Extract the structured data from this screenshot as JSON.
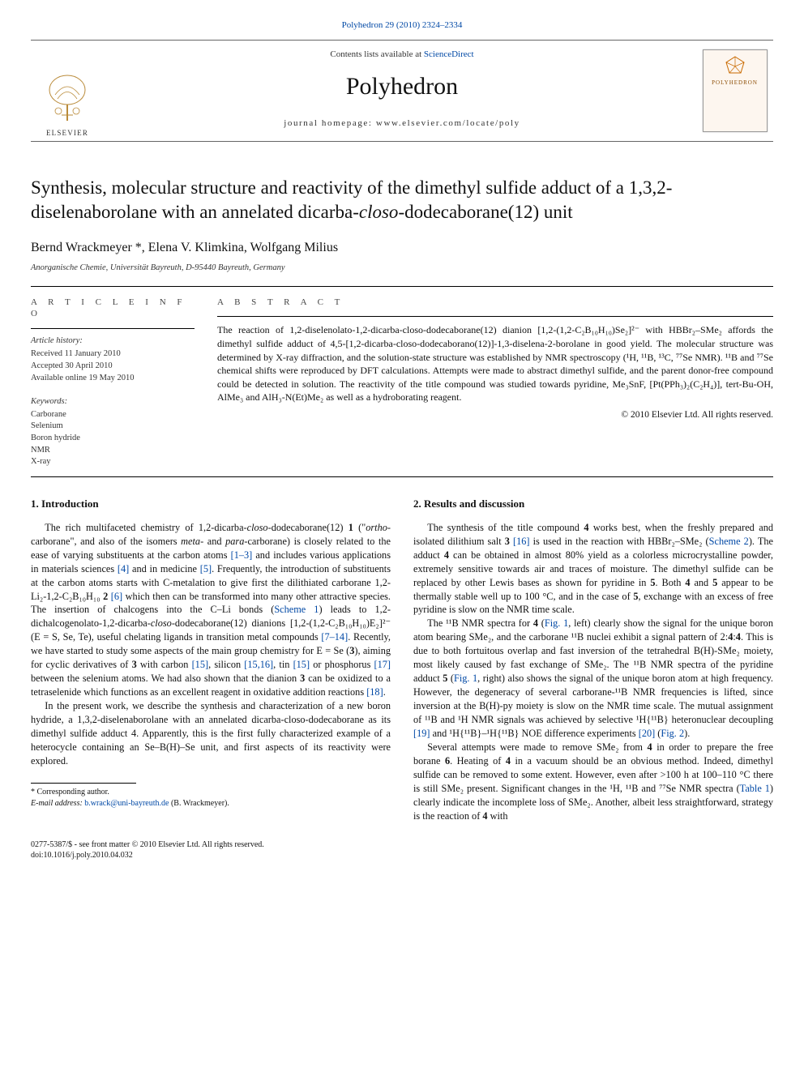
{
  "citation_line": "Polyhedron 29 (2010) 2324–2334",
  "masthead": {
    "contents_prefix": "Contents lists available at ",
    "contents_link": "ScienceDirect",
    "journal": "Polyhedron",
    "homepage_prefix": "journal homepage: ",
    "homepage": "www.elsevier.com/locate/poly",
    "elsevier_word": "ELSEVIER",
    "cover_title": "POLYHEDRON"
  },
  "title_parts": {
    "a": "Synthesis, molecular structure and reactivity of the dimethyl sulfide adduct of a 1,3,2-diselenaborolane with an annelated dicarba-",
    "b": "closo",
    "c": "-dodecaborane(12) unit"
  },
  "authors": "Bernd Wrackmeyer *, Elena V. Klimkina, Wolfgang Milius",
  "affiliation": "Anorganische Chemie, Universität Bayreuth, D-95440 Bayreuth, Germany",
  "sec_labels": {
    "article_info": "A R T I C L E   I N F O",
    "abstract": "A B S T R A C T",
    "history": "Article history:",
    "keywords": "Keywords:"
  },
  "history": {
    "received": "Received 11 January 2010",
    "accepted": "Accepted 30 April 2010",
    "online": "Available online 19 May 2010"
  },
  "keywords": [
    "Carborane",
    "Selenium",
    "Boron hydride",
    "NMR",
    "X-ray"
  ],
  "abstract": "The reaction of 1,2-diselenolato-1,2-dicarba-closo-dodecaborane(12) dianion [1,2-(1,2-C₂B₁₀H₁₀)Se₂]²⁻ with HBBr₂–SMe₂ affords the dimethyl sulfide adduct of 4,5-[1,2-dicarba-closo-dodecaborano(12)]-1,3-diselena-2-borolane in good yield. The molecular structure was determined by X-ray diffraction, and the solution-state structure was established by NMR spectroscopy (¹H, ¹¹B, ¹³C, ⁷⁷Se NMR). ¹¹B and ⁷⁷Se chemical shifts were reproduced by DFT calculations. Attempts were made to abstract dimethyl sulfide, and the parent donor-free compound could be detected in solution. The reactivity of the title compound was studied towards pyridine, Me₃SnF, [Pt(PPh₃)₂(C₂H₄)], tert-Bu-OH, AlMe₃ and AlH₃-N(Et)Me₂ as well as a hydroborating reagent.",
  "copyright": "© 2010 Elsevier Ltd. All rights reserved.",
  "sections": {
    "intro": "1. Introduction",
    "results": "2. Results and discussion"
  },
  "body": {
    "intro_p1_a": "The rich multifaceted chemistry of 1,2-dicarba-",
    "intro_p1_b": "closo",
    "intro_p1_c": "-dodecaborane(12) ",
    "bold1": "1",
    "intro_p1_d": " (\"",
    "ortho": "ortho",
    "intro_p1_e": "-carborane\", and also of the isomers ",
    "meta": "meta",
    "intro_p1_f": "- and ",
    "para_w": "para",
    "intro_p1_g": "-carborane) is closely related to the ease of varying substituents at the carbon atoms ",
    "ref1": "[1–3]",
    "intro_p1_h": " and includes various applications in materials sciences ",
    "ref4": "[4]",
    "intro_p1_i": " and in medicine ",
    "ref5": "[5]",
    "intro_p1_j": ". Frequently, the introduction of substituents at the carbon atoms starts with C-metalation to give first the dilithiated carborane 1,2-Li₂-1,2-C₂B₁₀H₁₀ ",
    "bold2": "2",
    "intro_p1_k": " ",
    "ref6": "[6]",
    "intro_p1_l": " which then can be transformed into many other attractive species. The insertion of chalcogens into the C–Li bonds (",
    "scheme1": "Scheme 1",
    "intro_p1_m": ") leads to 1,2-dichalcogenolato-1,2-dicarba-",
    "closo2": "closo",
    "intro_p1_n": "-dodecaborane(12) dianions [1,2-(1,2-C₂B₁₀H₁₀)E₂]²⁻ (E = S, Se, Te), useful chelating ligands in transition metal compounds ",
    "ref7": "[7–14]",
    "intro_p1_o": ". Recently, we have started to study some aspects of the main group chemistry for E = Se (",
    "bold3": "3",
    "intro_p1_p": "), aiming for cyclic derivatives of ",
    "bold3b": "3",
    "intro_p1_q": " with carbon ",
    "ref15a": "[15]",
    "intro_p1_r": ", silicon ",
    "ref1516": "[15,16]",
    "intro_p1_s": ", tin ",
    "ref15b": "[15]",
    "intro_p1_t": " or phosphorus ",
    "ref17": "[17]",
    "intro_p1_u": " between the selenium atoms. We had also shown that the dianion ",
    "bold3c": "3",
    "intro_p1_v": " can be oxidized to a tetraselenide which functions as an excellent reagent in oxidative addition reactions ",
    "ref18": "[18]",
    "intro_p1_w": ".",
    "intro_p2": "In the present work, we describe the synthesis and characterization of a new boron hydride, a 1,3,2-diselenaborolane with an annelated dicarba-closo-dodecaborane as its dimethyl sulfide adduct 4. Apparently, this is the first fully characterized example of a heterocycle containing an Se–B(H)–Se unit, and first aspects of its reactivity were explored.",
    "res_p1": "The synthesis of the title compound 4 works best, when the freshly prepared and isolated dilithium salt 3 [16] is used in the reaction with HBBr₂–SMe₂ (Scheme 2). The adduct 4 can be obtained in almost 80% yield as a colorless microcrystalline powder, extremely sensitive towards air and traces of moisture. The dimethyl sulfide can be replaced by other Lewis bases as shown for pyridine in 5. Both 4 and 5 appear to be thermally stable well up to 100 °C, and in the case of 5, exchange with an excess of free pyridine is slow on the NMR time scale.",
    "res_p2": "The ¹¹B NMR spectra for 4 (Fig. 1, left) clearly show the signal for the unique boron atom bearing SMe₂, and the carborane ¹¹B nuclei exhibit a signal pattern of 2:4:4. This is due to both fortuitous overlap and fast inversion of the tetrahedral B(H)-SMe₂ moiety, most likely caused by fast exchange of SMe₂. The ¹¹B NMR spectra of the pyridine adduct 5 (Fig. 1, right) also shows the signal of the unique boron atom at high frequency. However, the degeneracy of several carborane-¹¹B NMR frequencies is lifted, since inversion at the B(H)-py moiety is slow on the NMR time scale. The mutual assignment of ¹¹B and ¹H NMR signals was achieved by selective ¹H{¹¹B} heteronuclear decoupling [19] and ¹H{¹¹B}–¹H{¹¹B} NOE difference experiments [20] (Fig. 2).",
    "res_p3": "Several attempts were made to remove SMe₂ from 4 in order to prepare the free borane 6. Heating of 4 in a vacuum should be an obvious method. Indeed, dimethyl sulfide can be removed to some extent. However, even after >100 h at 100–110 °C there is still SMe₂ present. Significant changes in the ¹H, ¹¹B and ⁷⁷Se NMR spectra (Table 1) clearly indicate the incomplete loss of SMe₂. Another, albeit less straightforward, strategy is the reaction of 4 with"
  },
  "footnote": {
    "corr": "* Corresponding author.",
    "email_label": "E-mail address: ",
    "email": "b.wrack@uni-bayreuth.de",
    "email_suffix": " (B. Wrackmeyer)."
  },
  "footer": {
    "line1": "0277-5387/$ - see front matter © 2010 Elsevier Ltd. All rights reserved.",
    "doi": "doi:10.1016/j.poly.2010.04.032"
  },
  "refs_in_col2": {
    "r16": "[16]",
    "sch2": "Scheme 2",
    "fig1a": "Fig. 1",
    "fig1b": "Fig. 1",
    "r19": "[19]",
    "r20": "[20]",
    "fig2": "Fig. 2",
    "tab1": "Table 1"
  },
  "colors": {
    "link": "#0048a5",
    "text": "#111111",
    "muted": "#333333",
    "rule": "#000000"
  }
}
